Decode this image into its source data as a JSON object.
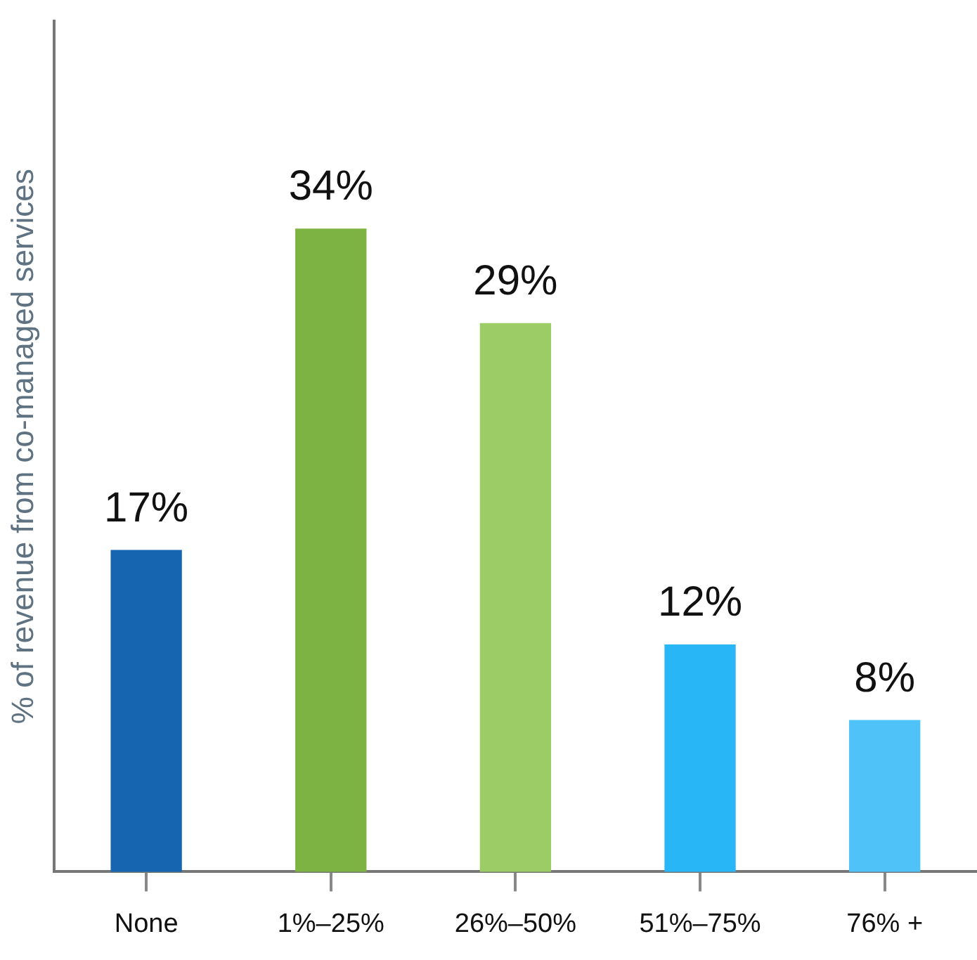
{
  "chart_data": {
    "type": "bar",
    "ylabel": "% of revenue from co-managed services",
    "categories": [
      "None",
      "1%–25%",
      "26%–50%",
      "51%–75%",
      "76% +"
    ],
    "values": [
      17,
      34,
      29,
      12,
      8
    ],
    "value_labels": [
      "17%",
      "34%",
      "29%",
      "12%",
      "8%"
    ],
    "colors": [
      "#1565b0",
      "#7cb342",
      "#9ccc65",
      "#29b6f6",
      "#4fc3f7"
    ],
    "tick_labels": "x",
    "legend": false
  }
}
